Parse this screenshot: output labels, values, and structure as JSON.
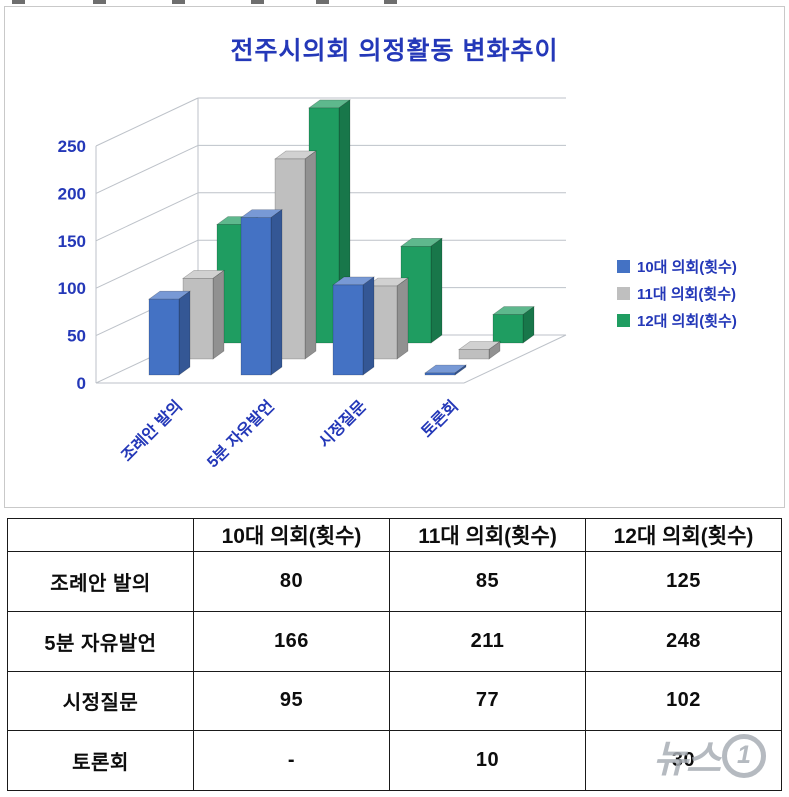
{
  "chart_data": {
    "type": "bar",
    "projection": "3d",
    "title": "전주시의회 의정활동 변화추이",
    "title_color": "#2438b8",
    "axis_label_color": "#2438b8",
    "categories": [
      "조례안 발의",
      "5분 자유발언",
      "시정질문",
      "토론회"
    ],
    "series": [
      {
        "name": "10대 의회(횟수)",
        "color": "#4472c4",
        "values": [
          80,
          166,
          95,
          0
        ]
      },
      {
        "name": "11대 의회(횟수)",
        "color": "#bfbfbf",
        "values": [
          85,
          211,
          77,
          10
        ]
      },
      {
        "name": "12대 의회(횟수)",
        "color": "#1f9d61",
        "values": [
          125,
          248,
          102,
          30
        ]
      }
    ],
    "yticks": [
      0,
      50,
      100,
      150,
      200,
      250
    ],
    "ylim": [
      0,
      250
    ],
    "grid": true,
    "legend_position": "right",
    "xlabel": "",
    "ylabel": ""
  },
  "table": {
    "columns": [
      "",
      "10대 의회(횟수)",
      "11대 의회(횟수)",
      "12대 의회(횟수)"
    ],
    "rows": [
      {
        "label": "조례안 발의",
        "values": [
          "80",
          "85",
          "125"
        ]
      },
      {
        "label": "5분 자유발언",
        "values": [
          "166",
          "211",
          "248"
        ]
      },
      {
        "label": "시정질문",
        "values": [
          "95",
          "77",
          "102"
        ]
      },
      {
        "label": "토론회",
        "values": [
          "-",
          "10",
          "30"
        ]
      }
    ]
  },
  "watermark": {
    "text": "뉴스",
    "badge": "1"
  }
}
